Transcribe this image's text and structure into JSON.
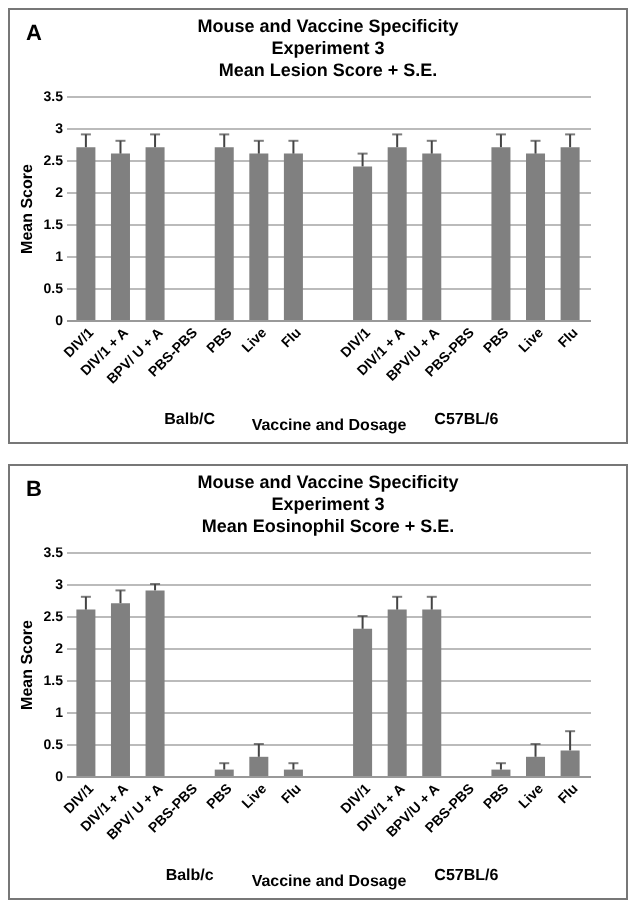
{
  "chart_data": [
    {
      "type": "bar",
      "title": "Mouse and Vaccine Specificity\nExperiment 3\nMean Lesion Score + S.E.",
      "xlabel": "Vaccine and Dosage",
      "ylabel": "Mean Score",
      "categories": [
        "DIV/1",
        "DIV/1 + A",
        "BPV/ U + A",
        "PBS-PBS",
        "PBS",
        "Live",
        "Flu",
        null,
        "DIV/1",
        "DIV/1 + A",
        "BPV/U + A",
        "PBS-PBS",
        "PBS",
        "Live",
        "Flu"
      ],
      "values": [
        2.7,
        2.6,
        2.7,
        0,
        2.7,
        2.6,
        2.6,
        null,
        2.4,
        2.7,
        2.6,
        0,
        2.7,
        2.6,
        2.7
      ],
      "errors": [
        [
          2.7,
          2.9
        ],
        [
          2.6,
          2.8
        ],
        [
          2.7,
          2.9
        ],
        null,
        [
          2.7,
          2.9
        ],
        [
          2.6,
          2.8
        ],
        [
          2.6,
          2.8
        ],
        null,
        [
          2.4,
          2.6
        ],
        [
          2.7,
          2.9
        ],
        [
          2.6,
          2.8
        ],
        null,
        [
          2.7,
          2.9
        ],
        [
          2.6,
          2.8
        ],
        [
          2.7,
          2.9
        ]
      ],
      "color": "#808080",
      "ylim": [
        0,
        3.5
      ],
      "yticks": [
        0,
        0.5,
        1,
        1.5,
        2,
        2.5,
        3,
        3.5
      ],
      "grid": "y",
      "annotations": [
        "A",
        "Balb/C",
        "C57BL/6"
      ]
    },
    {
      "type": "bar",
      "title": "Mouse and Vaccine Specificity\nExperiment 3\nMean Eosinophil Score + S.E.",
      "xlabel": "Vaccine and Dosage",
      "ylabel": "Mean Score",
      "categories": [
        "DIV/1",
        "DIV/1 + A",
        "BPV/ U + A",
        "PBS-PBS",
        "PBS",
        "Live",
        "Flu",
        null,
        "DIV/1",
        "DIV/1 + A",
        "BPV/U + A",
        "PBS-PBS",
        "PBS",
        "Live",
        "Flu"
      ],
      "values": [
        2.6,
        2.7,
        2.9,
        0,
        0.1,
        0.3,
        0.1,
        null,
        2.3,
        2.6,
        2.6,
        0,
        0.1,
        0.3,
        0.4
      ],
      "errors": [
        [
          2.6,
          2.8
        ],
        [
          2.7,
          2.9
        ],
        [
          2.9,
          3.0
        ],
        null,
        [
          0.1,
          0.2
        ],
        [
          0.3,
          0.5
        ],
        [
          0.1,
          0.2
        ],
        null,
        [
          2.3,
          2.5
        ],
        [
          2.6,
          2.8
        ],
        [
          2.6,
          2.8
        ],
        null,
        [
          0.1,
          0.2
        ],
        [
          0.3,
          0.5
        ],
        [
          0.4,
          0.7
        ]
      ],
      "color": "#808080",
      "ylim": [
        0,
        3.5
      ],
      "yticks": [
        0,
        0.5,
        1,
        1.5,
        2,
        2.5,
        3,
        3.5
      ],
      "grid": "y",
      "annotations": [
        "B",
        "Balb/c",
        "C57BL/6"
      ]
    }
  ]
}
